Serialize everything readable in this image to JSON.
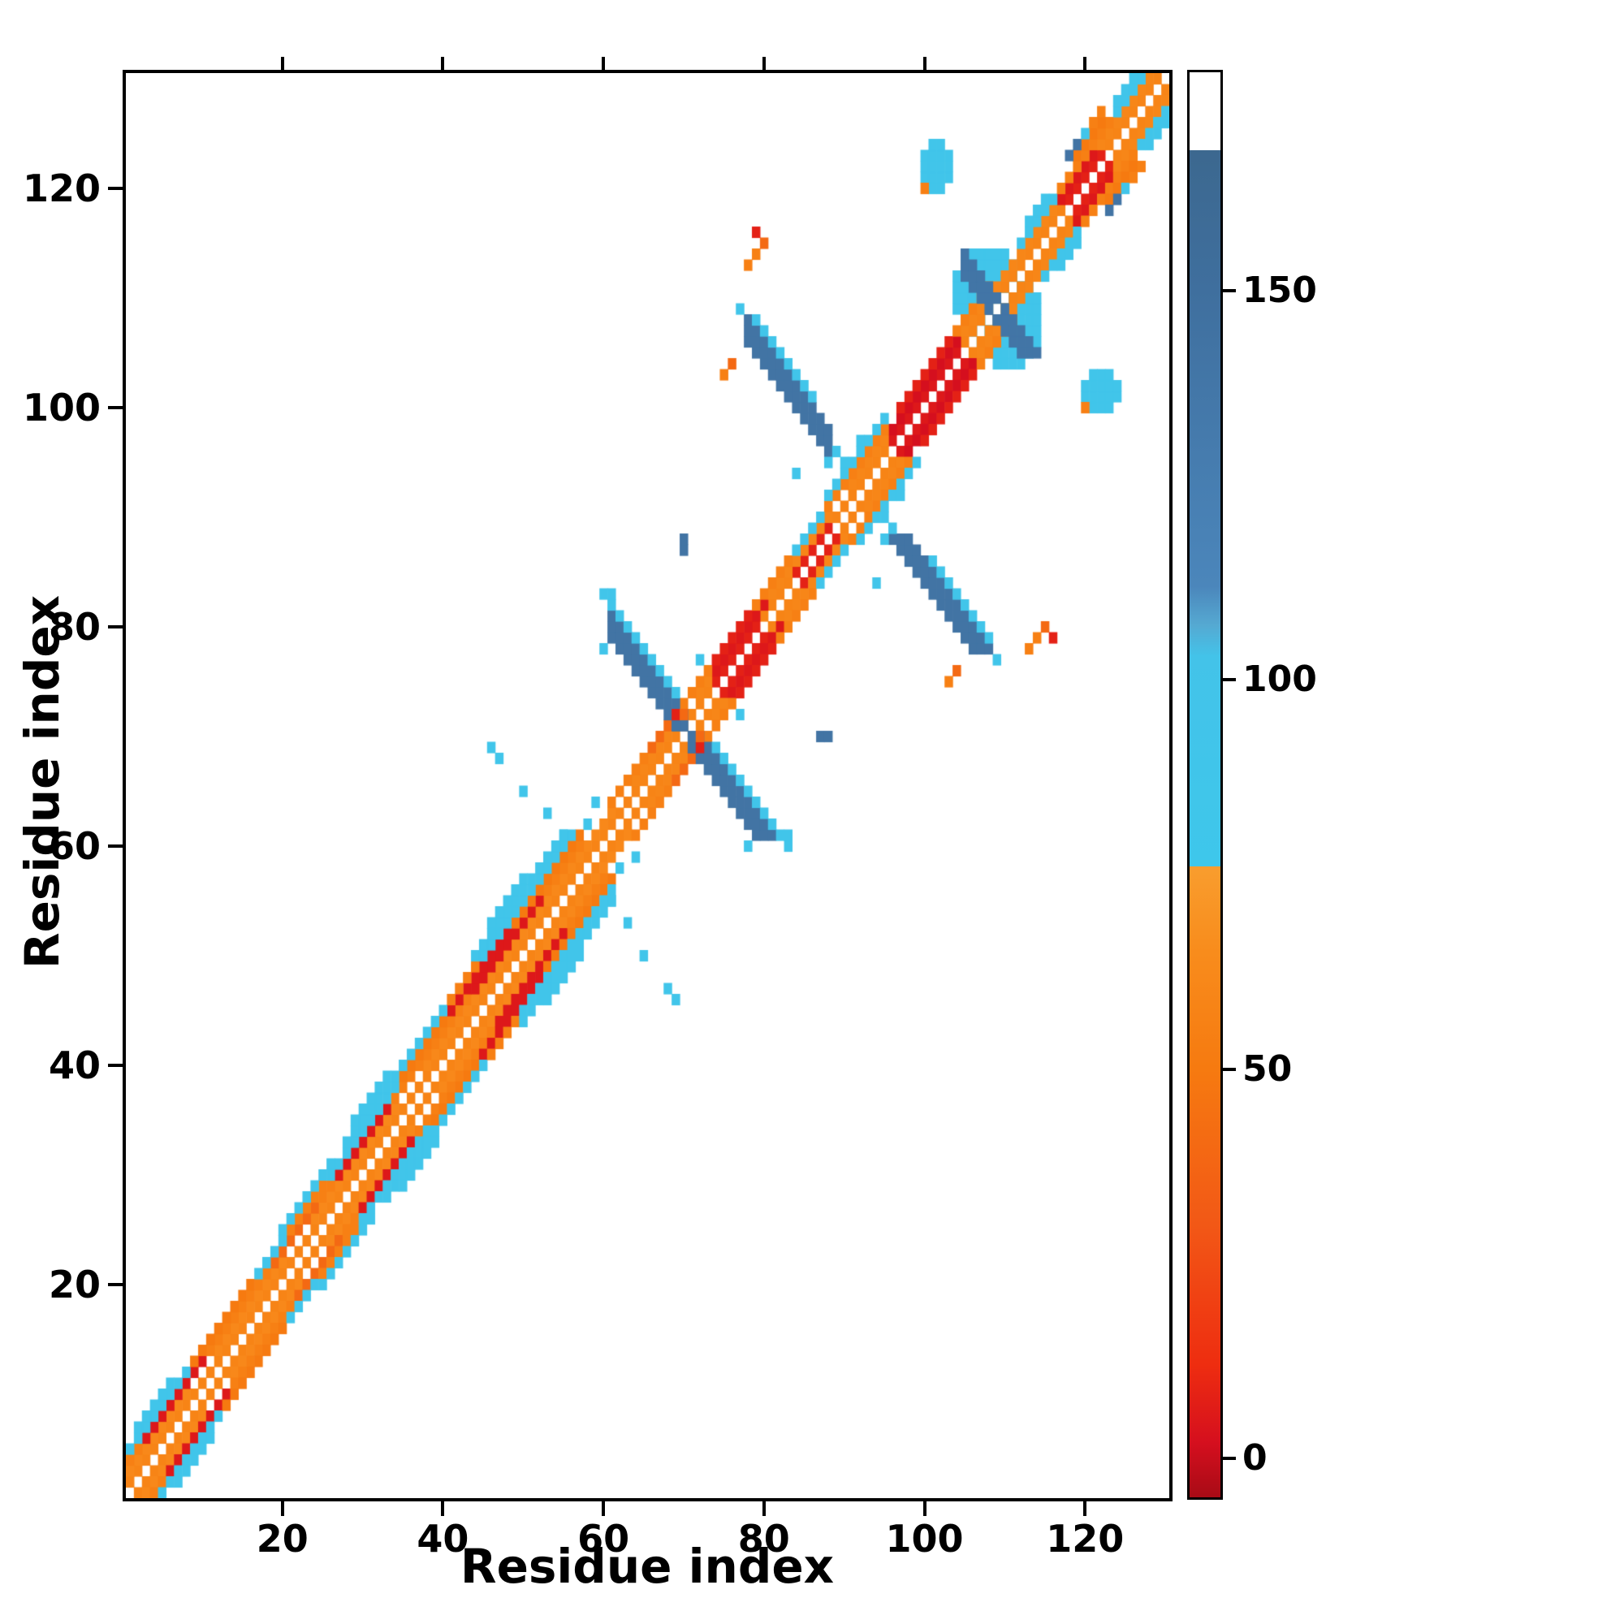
{
  "figure": {
    "xlabel": "Residue index",
    "ylabel": "Residue index",
    "x_ticks": [
      20,
      40,
      60,
      80,
      100,
      120
    ],
    "y_ticks": [
      20,
      40,
      60,
      80,
      100,
      120
    ],
    "colorbar_ticks": [
      0,
      50,
      100,
      150
    ]
  },
  "chart_data": {
    "type": "heatmap",
    "title": "",
    "xlabel": "Residue index",
    "ylabel": "Residue index",
    "n_residues": 130,
    "xlim": [
      1,
      130
    ],
    "ylim": [
      1,
      130
    ],
    "symmetric": true,
    "grid": false,
    "colormap": {
      "vmin": -5,
      "vmax": 178,
      "stops": [
        [
          -5,
          "#a80b16"
        ],
        [
          2,
          "#d50f1e"
        ],
        [
          12,
          "#ee2d10"
        ],
        [
          30,
          "#f25816"
        ],
        [
          50,
          "#f67a10"
        ],
        [
          65,
          "#f88c1c"
        ],
        [
          76,
          "#f99d2e"
        ],
        [
          76,
          "#3ec7eb"
        ],
        [
          103,
          "#43c3e9"
        ],
        [
          107,
          "#55a9d2"
        ],
        [
          112,
          "#4b86bb"
        ],
        [
          150,
          "#3f6f9e"
        ],
        [
          168,
          "#3c688f"
        ],
        [
          168,
          "#ffffff"
        ],
        [
          178,
          "#ffffff"
        ]
      ]
    },
    "bands": [
      {
        "i0": 1,
        "i1": 73,
        "off": 1,
        "v": 58
      },
      {
        "i0": 74,
        "i1": 79,
        "off": 1,
        "v": 8
      },
      {
        "i0": 80,
        "i1": 83,
        "off": 1,
        "v": 58
      },
      {
        "i0": 84,
        "i1": 88,
        "off": 1,
        "v": 8
      },
      {
        "i0": 89,
        "i1": 95,
        "off": 1,
        "v": 58
      },
      {
        "i0": 96,
        "i1": 104,
        "off": 1,
        "v": 5
      },
      {
        "i0": 105,
        "i1": 117,
        "off": 1,
        "v": 58
      },
      {
        "i0": 118,
        "i1": 122,
        "off": 1,
        "v": 8
      },
      {
        "i0": 123,
        "i1": 129,
        "off": 1,
        "v": 58
      },
      {
        "i0": 1,
        "i1": 8,
        "off": 2,
        "v": 62
      },
      {
        "i0": 12,
        "i1": 20,
        "off": 2,
        "v": 62
      },
      {
        "i0": 24,
        "i1": 34,
        "off": 2,
        "v": 62
      },
      {
        "i0": 38,
        "i1": 61,
        "off": 2,
        "v": 62
      },
      {
        "i0": 64,
        "i1": 69,
        "off": 2,
        "v": 60
      },
      {
        "i0": 72,
        "i1": 73,
        "off": 2,
        "v": 60
      },
      {
        "i0": 74,
        "i1": 80,
        "off": 2,
        "v": 5
      },
      {
        "i0": 81,
        "i1": 88,
        "off": 2,
        "v": 60
      },
      {
        "i0": 91,
        "i1": 95,
        "off": 2,
        "v": 60
      },
      {
        "i0": 96,
        "i1": 104,
        "off": 2,
        "v": 2
      },
      {
        "i0": 105,
        "i1": 116,
        "off": 2,
        "v": 60
      },
      {
        "i0": 117,
        "i1": 121,
        "off": 2,
        "v": 5
      },
      {
        "i0": 122,
        "i1": 128,
        "off": 2,
        "v": 60
      },
      {
        "i0": 1,
        "i1": 2,
        "off": 3,
        "v": 55
      },
      {
        "i0": 3,
        "i1": 10,
        "off": 3,
        "v": 5
      },
      {
        "i0": 11,
        "i1": 18,
        "off": 3,
        "v": 55
      },
      {
        "i0": 19,
        "i1": 24,
        "off": 3,
        "v": 40
      },
      {
        "i0": 25,
        "i1": 26,
        "off": 3,
        "v": 55
      },
      {
        "i0": 27,
        "i1": 33,
        "off": 3,
        "v": 5
      },
      {
        "i0": 34,
        "i1": 43,
        "off": 3,
        "v": 55
      },
      {
        "i0": 44,
        "i1": 52,
        "off": 3,
        "v": 5
      },
      {
        "i0": 53,
        "i1": 57,
        "off": 3,
        "v": 55
      },
      {
        "i0": 61,
        "i1": 65,
        "off": 3,
        "v": 55
      },
      {
        "i0": 66,
        "i1": 69,
        "off": 3,
        "v": 40
      },
      {
        "i0": 70,
        "i1": 73,
        "off": 3,
        "v": 55
      },
      {
        "i0": 74,
        "i1": 78,
        "off": 3,
        "v": 8
      },
      {
        "i0": 79,
        "i1": 83,
        "off": 3,
        "v": 55
      },
      {
        "i0": 84,
        "i1": 87,
        "off": 3,
        "v": 90
      },
      {
        "i0": 88,
        "i1": 95,
        "off": 3,
        "v": 55
      },
      {
        "i0": 97,
        "i1": 103,
        "off": 3,
        "v": 8
      },
      {
        "i0": 104,
        "i1": 108,
        "off": 3,
        "v": 55
      },
      {
        "i0": 112,
        "i1": 116,
        "off": 3,
        "v": 90
      },
      {
        "i0": 117,
        "i1": 123,
        "off": 3,
        "v": 55
      },
      {
        "i0": 124,
        "i1": 128,
        "off": 3,
        "v": 90
      },
      {
        "i0": 1,
        "i1": 8,
        "off": 4,
        "v": 90
      },
      {
        "i0": 9,
        "i1": 16,
        "off": 4,
        "v": 50
      },
      {
        "i0": 17,
        "i1": 20,
        "off": 4,
        "v": 90
      },
      {
        "i0": 21,
        "i1": 25,
        "off": 4,
        "v": 55
      },
      {
        "i0": 26,
        "i1": 34,
        "off": 4,
        "v": 90
      },
      {
        "i0": 35,
        "i1": 40,
        "off": 4,
        "v": 50
      },
      {
        "i0": 41,
        "i1": 48,
        "off": 4,
        "v": 5
      },
      {
        "i0": 49,
        "i1": 57,
        "off": 4,
        "v": 50
      },
      {
        "i0": 88,
        "i1": 93,
        "off": 4,
        "v": 90
      },
      {
        "i0": 113,
        "i1": 115,
        "off": 4,
        "v": 90
      },
      {
        "i0": 119,
        "i1": 122,
        "off": 4,
        "v": 50
      },
      {
        "i0": 125,
        "i1": 126,
        "off": 4,
        "v": 90
      },
      {
        "i0": 2,
        "i1": 6,
        "off": 5,
        "v": 90
      },
      {
        "i0": 20,
        "i1": 26,
        "off": 5,
        "v": 90
      },
      {
        "i0": 28,
        "i1": 40,
        "off": 5,
        "v": 90
      },
      {
        "i0": 41,
        "i1": 44,
        "off": 5,
        "v": 55
      },
      {
        "i0": 45,
        "i1": 56,
        "off": 5,
        "v": 90
      },
      {
        "i0": 29,
        "i1": 33,
        "off": 6,
        "v": 90
      },
      {
        "i0": 44,
        "i1": 55,
        "off": 6,
        "v": 90
      },
      {
        "i0": 46,
        "i1": 50,
        "off": 7,
        "v": 90
      }
    ],
    "antidiagonals": [
      {
        "i0": 61,
        "i1": 71,
        "sum": 140,
        "w": 3,
        "v": 142
      },
      {
        "i0": 60,
        "i1": 69,
        "sum": 143,
        "w": 1,
        "v": 90
      },
      {
        "i0": 78,
        "i1": 88,
        "sum": 184,
        "w": 3,
        "v": 142
      },
      {
        "i0": 79,
        "i1": 86,
        "sum": 187,
        "w": 1,
        "v": 90
      },
      {
        "i0": 105,
        "i1": 109,
        "sum": 217,
        "w": 3,
        "v": 140
      }
    ],
    "blobs": [
      {
        "cx": 108,
        "cy": 110.5,
        "rx": 4.6,
        "ry": 4.4,
        "v": 92
      },
      {
        "cx": 101.5,
        "cy": 122,
        "rx": 2.4,
        "ry": 2.2,
        "v": 92
      }
    ],
    "dots": [
      [
        100,
        120,
        55
      ],
      [
        70,
        87,
        142
      ],
      [
        70,
        88,
        142
      ],
      [
        75,
        103,
        55
      ],
      [
        76,
        104,
        40
      ],
      [
        77,
        109,
        90
      ],
      [
        89,
        96,
        90
      ],
      [
        88,
        95,
        90
      ],
      [
        78,
        113,
        55
      ],
      [
        79,
        114,
        55
      ],
      [
        80,
        115,
        40
      ],
      [
        79,
        116,
        8
      ],
      [
        46,
        69,
        90
      ],
      [
        47,
        68,
        90
      ],
      [
        50,
        65,
        90
      ],
      [
        53,
        63,
        90
      ],
      [
        55,
        61,
        90
      ],
      [
        58,
        62,
        90
      ],
      [
        59,
        64,
        90
      ],
      [
        61,
        83,
        90
      ],
      [
        60,
        78,
        90
      ],
      [
        69,
        72,
        8
      ],
      [
        70,
        72,
        40
      ],
      [
        90,
        95,
        90
      ],
      [
        92,
        97,
        90
      ],
      [
        94,
        98,
        90
      ],
      [
        95,
        99,
        90
      ],
      [
        118,
        123,
        142
      ],
      [
        119,
        124,
        142
      ],
      [
        120,
        125,
        90
      ],
      [
        121,
        126,
        55
      ],
      [
        122,
        127,
        55
      ],
      [
        126,
        129,
        90
      ],
      [
        124,
        128,
        90
      ],
      [
        84,
        94,
        90
      ],
      [
        72,
        77,
        90
      ]
    ]
  }
}
